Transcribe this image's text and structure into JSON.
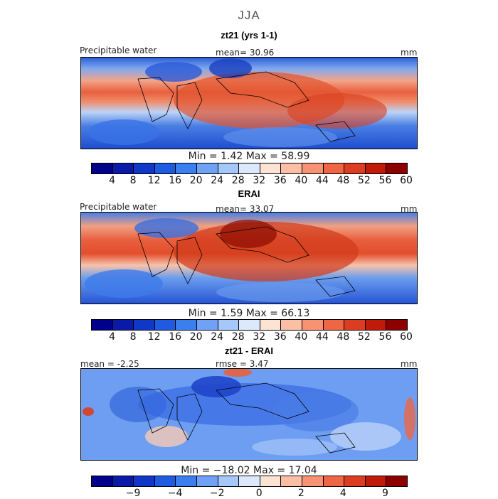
{
  "figure": {
    "season": "JJA"
  },
  "panels": [
    {
      "title": "zt21 (yrs 1-1)",
      "variable": "Precipitable water",
      "stat_left": "",
      "mean": "mean=   30.96",
      "units": "mm",
      "minmax": "Min =    1.42  Max =   58.99",
      "colorbar": {
        "colors": [
          "#00008b",
          "#0a1aa8",
          "#1037c8",
          "#1f5be0",
          "#3b7eef",
          "#6fa2f7",
          "#a5c8fb",
          "#dce9fd",
          "#fde3d4",
          "#fbbfa5",
          "#f79373",
          "#ee6644",
          "#dc3d20",
          "#c01a08",
          "#8c0000"
        ],
        "ticks": [
          "4",
          "8",
          "12",
          "16",
          "20",
          "24",
          "28",
          "32",
          "36",
          "40",
          "44",
          "48",
          "52",
          "56",
          "60"
        ]
      }
    },
    {
      "title": "ERAI",
      "variable": "Precipitable water",
      "stat_left": "",
      "mean": "mean=   33.07",
      "units": "mm",
      "minmax": "Min =    1.59  Max =   66.13",
      "colorbar": {
        "colors": [
          "#00008b",
          "#0a1aa8",
          "#1037c8",
          "#1f5be0",
          "#3b7eef",
          "#6fa2f7",
          "#a5c8fb",
          "#dce9fd",
          "#fde3d4",
          "#fbbfa5",
          "#f79373",
          "#ee6644",
          "#dc3d20",
          "#c01a08",
          "#8c0000"
        ],
        "ticks": [
          "4",
          "8",
          "12",
          "16",
          "20",
          "24",
          "28",
          "32",
          "36",
          "40",
          "44",
          "48",
          "52",
          "56",
          "60"
        ]
      }
    },
    {
      "title": "zt21 - ERAI",
      "variable": "",
      "stat_left": "mean =   -2.25",
      "mean": "rmse =    3.47",
      "units": "mm",
      "minmax": "Min = −18.02  Max =   17.04",
      "colorbar": {
        "colors": [
          "#00008b",
          "#0a1aa8",
          "#1037c8",
          "#1f5be0",
          "#3b7eef",
          "#6fa2f7",
          "#a5c8fb",
          "#dce9fd",
          "#fde3d4",
          "#fbbfa5",
          "#f79373",
          "#ee6644",
          "#dc3d20",
          "#c01a08",
          "#8c0000"
        ],
        "ticks": [
          "",
          "−9",
          "",
          "−4",
          "",
          "−2",
          "",
          "0",
          "",
          "2",
          "",
          "4",
          "",
          "9",
          ""
        ]
      }
    }
  ]
}
